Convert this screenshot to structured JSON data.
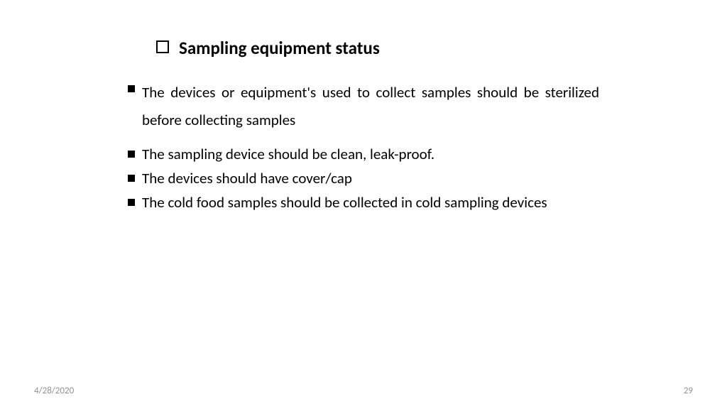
{
  "slide": {
    "title": "Sampling equipment status",
    "bullets": [
      "The devices or equipment's used to collect samples should be sterilized before collecting samples",
      "The sampling device should be clean, leak-proof.",
      "The devices should have cover/cap",
      "The cold food samples should be collected in cold sampling devices"
    ],
    "footer_date": "4/28/2020",
    "footer_page": "29",
    "colors": {
      "background": "#ffffff",
      "text": "#000000",
      "footer_text": "#919191"
    },
    "typography": {
      "title_fontsize": 25,
      "title_weight": "bold",
      "body_fontsize": 21,
      "footer_fontsize": 13,
      "font_family": "Calibri"
    },
    "bullet_styles": {
      "title_marker": "hollow-square",
      "item_marker": "solid-square",
      "hollow_square_size": 18,
      "solid_square_size": 10
    }
  }
}
